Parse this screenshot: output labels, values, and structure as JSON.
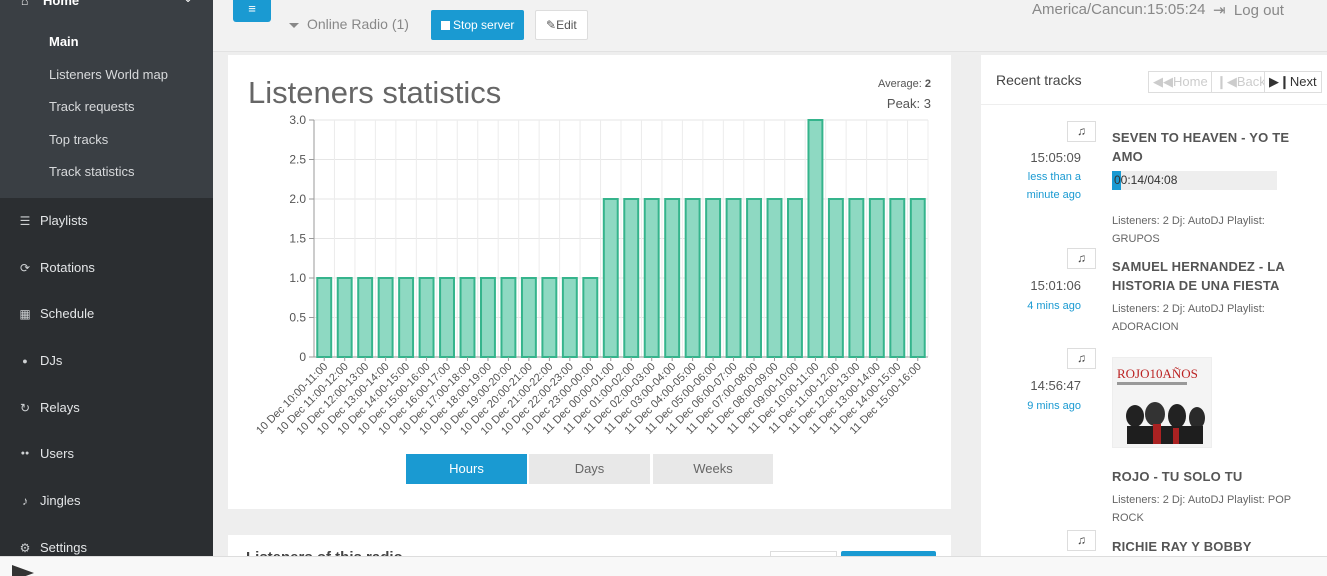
{
  "sidebar": {
    "home_label": "Home",
    "home_sub": [
      {
        "label": "Main",
        "active": true
      },
      {
        "label": "Listeners World map"
      },
      {
        "label": "Track requests"
      },
      {
        "label": "Top tracks"
      },
      {
        "label": "Track statistics"
      }
    ],
    "items": [
      {
        "label": "Playlists",
        "icon": "list-icon",
        "glyph": "☰"
      },
      {
        "label": "Rotations",
        "icon": "refresh-icon",
        "glyph": "⟳"
      },
      {
        "label": "Schedule",
        "icon": "calendar-icon",
        "glyph": "▦"
      },
      {
        "label": "DJs",
        "icon": "user-icon",
        "glyph": "●"
      },
      {
        "label": "Relays",
        "icon": "rotate-icon",
        "glyph": "↻"
      },
      {
        "label": "Users",
        "icon": "users-icon",
        "glyph": "●●"
      },
      {
        "label": "Jingles",
        "icon": "bell-icon",
        "glyph": "♪"
      },
      {
        "label": "Settings",
        "icon": "cogs-icon",
        "glyph": "⚙"
      }
    ]
  },
  "topbar": {
    "menu_glyph": "≡",
    "station": "Online Radio (1)",
    "stop_label": "Stop server",
    "edit_label": "Edit",
    "timezone_clock": "America/Cancun:15:05:24",
    "logout_label": "Log out"
  },
  "stats": {
    "title": "Listeners statistics",
    "average_label": "Average:",
    "average_value": "2",
    "peak": "Peak: 3",
    "range_buttons": [
      {
        "label": "Hours",
        "active": true
      },
      {
        "label": "Days"
      },
      {
        "label": "Weeks"
      }
    ]
  },
  "chart_data": {
    "type": "bar",
    "title": "Listeners statistics",
    "categories": [
      "10 Dec 10:00-11:00",
      "10 Dec 11:00-12:00",
      "10 Dec 12:00-13:00",
      "10 Dec 13:00-14:00",
      "10 Dec 14:00-15:00",
      "10 Dec 15:00-16:00",
      "10 Dec 16:00-17:00",
      "10 Dec 17:00-18:00",
      "10 Dec 18:00-19:00",
      "10 Dec 19:00-20:00",
      "10 Dec 20:00-21:00",
      "10 Dec 21:00-22:00",
      "10 Dec 22:00-23:00",
      "10 Dec 23:00-00:00",
      "11 Dec 00:00-01:00",
      "11 Dec 01:00-02:00",
      "11 Dec 02:00-03:00",
      "11 Dec 03:00-04:00",
      "11 Dec 04:00-05:00",
      "11 Dec 05:00-06:00",
      "11 Dec 06:00-07:00",
      "11 Dec 07:00-08:00",
      "11 Dec 08:00-09:00",
      "11 Dec 09:00-10:00",
      "11 Dec 10:00-11:00",
      "11 Dec 11:00-12:00",
      "11 Dec 12:00-13:00",
      "11 Dec 13:00-14:00",
      "11 Dec 14:00-15:00",
      "11 Dec 15:00-16:00"
    ],
    "values": [
      1,
      1,
      1,
      1,
      1,
      1,
      1,
      1,
      1,
      1,
      1,
      1,
      1,
      1,
      2,
      2,
      2,
      2,
      2,
      2,
      2,
      2,
      2,
      2,
      3,
      2,
      2,
      2,
      2,
      2
    ],
    "ylim": [
      0,
      3
    ],
    "yticks": [
      "0",
      "0.5",
      "1.0",
      "1.5",
      "2.0",
      "2.5",
      "3.0"
    ],
    "grid": true,
    "colors": {
      "bar_fill": "#8ed9c2",
      "bar_stroke": "#35b48c"
    }
  },
  "recent_tracks": {
    "title": "Recent tracks",
    "home_label": "Home",
    "back_label": "Back",
    "next_label": "Next",
    "tracks": [
      {
        "time": "15:05:09",
        "ago": "less than a minute ago",
        "title": "SEVEN TO HEAVEN - YO TE AMO",
        "progress_text": "00:14/04:08",
        "progress_fraction": 0.057,
        "meta": "Listeners: 2 Dj: AutoDJ Playlist: GRUPOS"
      },
      {
        "time": "15:01:06",
        "ago": "4 mins ago",
        "title": "SAMUEL HERNANDEZ - LA HISTORIA DE UNA FIESTA",
        "meta": "Listeners: 2 Dj: AutoDJ Playlist: ADORACION"
      },
      {
        "time": "14:56:47",
        "ago": "9 mins ago",
        "title": "ROJO - TU SOLO TU",
        "meta": "Listeners: 2 Dj: AutoDJ Playlist: POP ROCK",
        "cover_text": "ROJO10AÑOS"
      },
      {
        "title": "RICHIE RAY Y BOBBY"
      }
    ]
  },
  "second_panel": {
    "title": "Listeners of this radio"
  }
}
